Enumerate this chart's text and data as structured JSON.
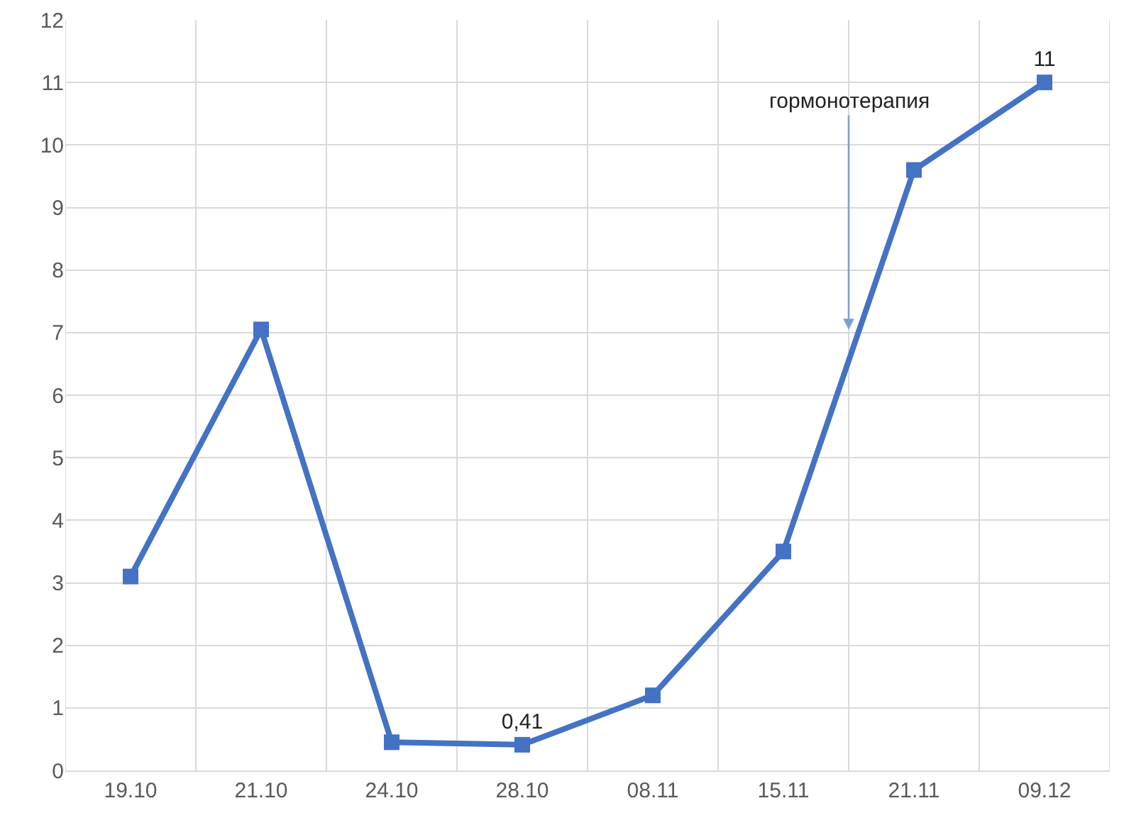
{
  "chart_data": {
    "type": "line",
    "categories": [
      "19.10",
      "21.10",
      "24.10",
      "28.10",
      "08.11",
      "15.11",
      "21.11",
      "09.12"
    ],
    "series": [
      {
        "color": "#4472c4",
        "values": [
          3.1,
          7.05,
          0.45,
          0.41,
          1.2,
          3.5,
          9.6,
          11
        ],
        "value_labels": [
          null,
          null,
          null,
          "0,41",
          null,
          null,
          null,
          "11"
        ]
      }
    ],
    "ylim": [
      0,
      12
    ],
    "yticks": [
      0,
      1,
      2,
      3,
      4,
      5,
      6,
      7,
      8,
      9,
      10,
      11,
      12
    ],
    "grid": true,
    "marker": "square",
    "line_style": "solid",
    "annotations": [
      {
        "text": "гормонотерапия",
        "y": 7
      }
    ]
  }
}
